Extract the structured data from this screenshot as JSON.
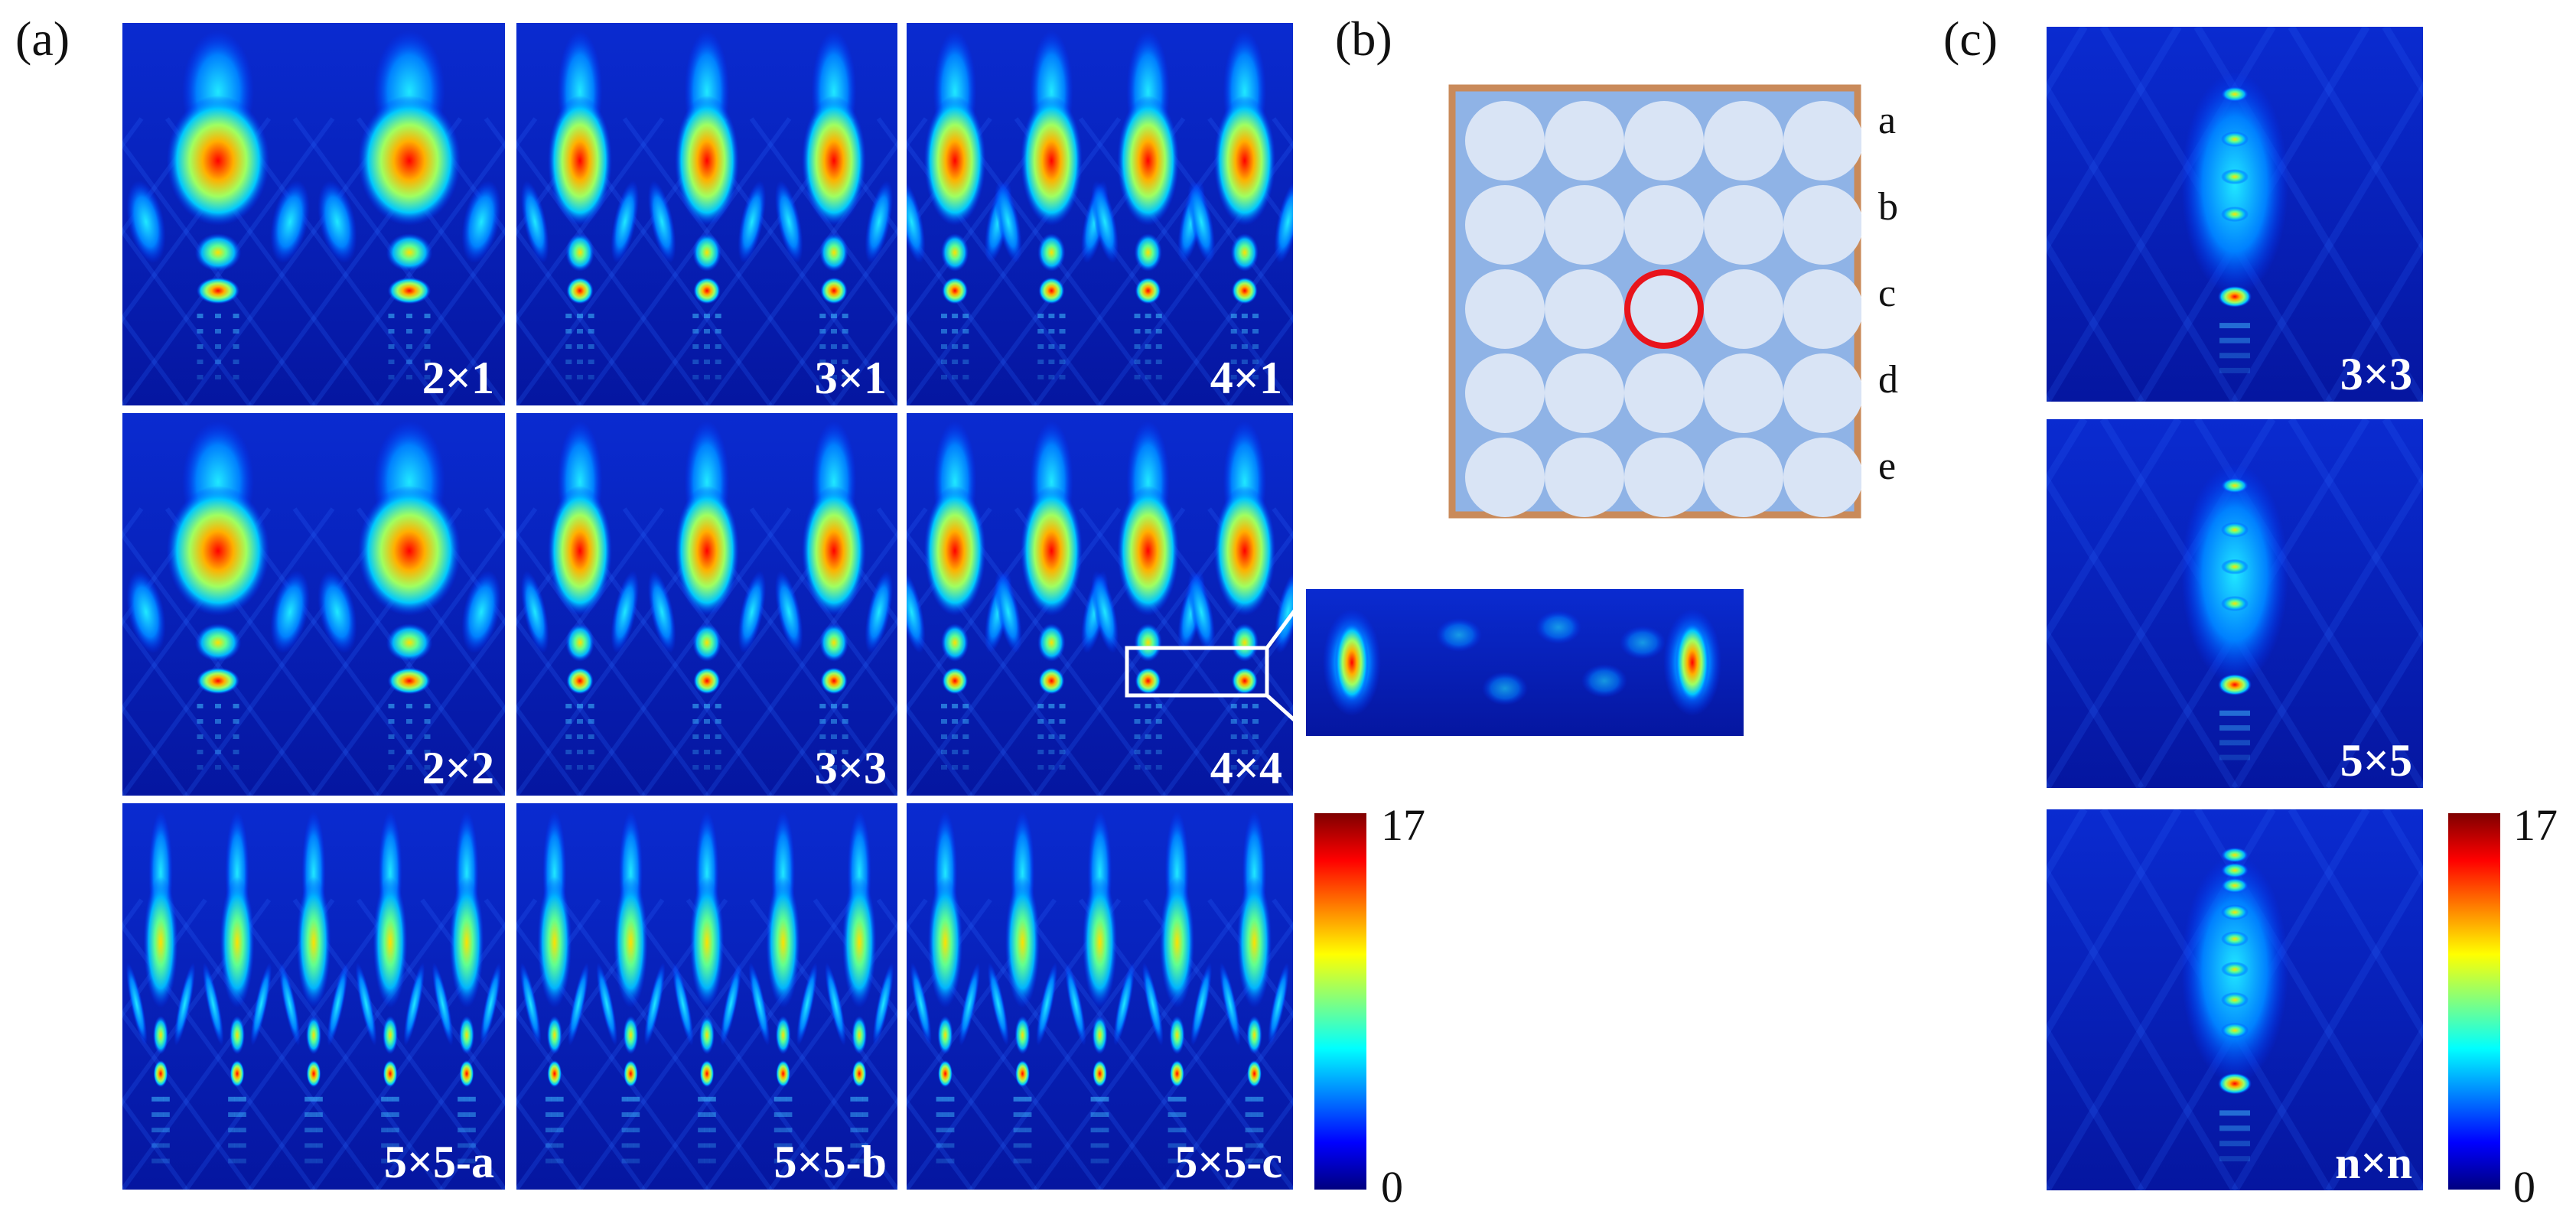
{
  "panel_labels": {
    "a": "(a)",
    "b": "(b)",
    "c": "(c)"
  },
  "panel_a": {
    "maps": [
      {
        "label": "2×1",
        "arrays": 2,
        "style": "broad"
      },
      {
        "label": "3×1",
        "arrays": 3,
        "style": "mid"
      },
      {
        "label": "4×1",
        "arrays": 4,
        "style": "mid"
      },
      {
        "label": "2×2",
        "arrays": 2,
        "style": "broad"
      },
      {
        "label": "3×3",
        "arrays": 3,
        "style": "mid"
      },
      {
        "label": "4×4",
        "arrays": 4,
        "style": "mid"
      },
      {
        "label": "5×5-a",
        "arrays": 5,
        "style": "thin"
      },
      {
        "label": "5×5-b",
        "arrays": 5,
        "style": "thin"
      },
      {
        "label": "5×5-c",
        "arrays": 5,
        "style": "thin"
      }
    ],
    "colorbar": {
      "max": "17",
      "min": "0"
    }
  },
  "panel_b": {
    "grid_size": 5,
    "row_labels": [
      "a",
      "b",
      "c",
      "d",
      "e"
    ],
    "highlighted_cell": {
      "row": "c",
      "column": 3
    },
    "colors": {
      "frame": "#c98a5a",
      "background": "#8fb3e6",
      "circle": "#d9e4f5",
      "highlight": "#e8141c"
    }
  },
  "panel_c": {
    "maps": [
      {
        "label": "3×3"
      },
      {
        "label": "5×5"
      },
      {
        "label": "n×n"
      }
    ],
    "colorbar": {
      "max": "17",
      "min": "0"
    }
  },
  "colormap": [
    "#00007f",
    "#0000ff",
    "#0080ff",
    "#00ffff",
    "#80ff80",
    "#ffff00",
    "#ff8000",
    "#ff0000",
    "#7f0000"
  ]
}
